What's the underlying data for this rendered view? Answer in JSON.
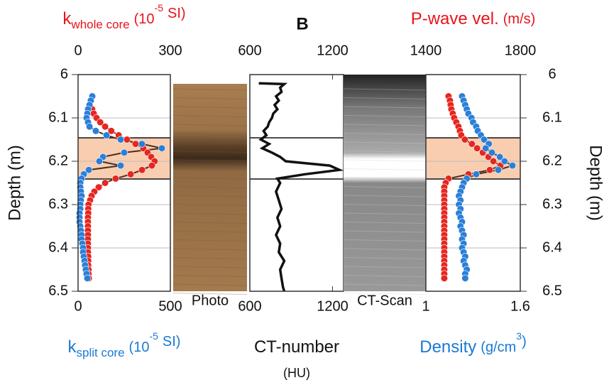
{
  "chart_data": [
    {
      "type": "scatter",
      "ylim": [
        6,
        6.5
      ],
      "yticks": [
        6,
        6.1,
        6.2,
        6.3,
        6.4,
        6.5
      ],
      "y_side": "left",
      "ylabel": "Depth (m)",
      "grid": true,
      "xlim": [
        0,
        500
      ],
      "xticks": [
        0,
        500
      ],
      "x2lim": [
        0,
        300
      ],
      "x2ticks": [
        0,
        300
      ],
      "xlabel": {
        "color": "#1a7ad4",
        "parts": [
          {
            "text": "k"
          },
          {
            "text": "split core",
            "role": "sub"
          },
          {
            "text": "(10",
            "role": "unit"
          },
          {
            "text": "-5",
            "role": "sup"
          },
          {
            "text": "SI)",
            "role": "unit"
          }
        ]
      },
      "x2label": {
        "color": "#e8141c",
        "parts": [
          {
            "text": "k"
          },
          {
            "text": "whole core",
            "role": "sub"
          },
          {
            "text": "(10",
            "role": "unit"
          },
          {
            "text": "-5",
            "role": "sup"
          },
          {
            "text": "SI)",
            "role": "unit"
          }
        ]
      },
      "highlight": [
        6.146,
        6.241
      ],
      "series": [
        {
          "color": "#e6261f",
          "axis": "x2",
          "depth": [
            6.08,
            6.09,
            6.1,
            6.11,
            6.12,
            6.13,
            6.14,
            6.15,
            6.16,
            6.17,
            6.18,
            6.19,
            6.2,
            6.21,
            6.22,
            6.23,
            6.24,
            6.25,
            6.26,
            6.27,
            6.28,
            6.29,
            6.3,
            6.31,
            6.32,
            6.33,
            6.34,
            6.35,
            6.36,
            6.37,
            6.38,
            6.39,
            6.4,
            6.41,
            6.42,
            6.43,
            6.44,
            6.45,
            6.46,
            6.47
          ],
          "values": [
            46,
            51,
            60,
            72,
            88,
            108,
            132,
            159,
            187,
            212,
            226,
            238,
            249,
            240,
            208,
            171,
            122,
            88,
            67,
            53,
            44,
            39,
            34,
            33,
            33,
            32,
            32,
            32,
            32,
            32,
            32,
            32,
            32,
            32,
            33,
            33,
            33,
            34,
            34,
            35
          ]
        },
        {
          "color": "#2a7fd8",
          "depth": [
            6.05,
            6.06,
            6.07,
            6.08,
            6.09,
            6.1,
            6.11,
            6.12,
            6.13,
            6.14,
            6.15,
            6.16,
            6.17,
            6.18,
            6.19,
            6.2,
            6.21,
            6.22,
            6.23,
            6.24,
            6.25,
            6.26,
            6.27,
            6.28,
            6.29,
            6.3,
            6.31,
            6.32,
            6.33,
            6.34,
            6.35,
            6.36,
            6.37,
            6.38,
            6.39,
            6.4,
            6.41,
            6.42,
            6.43,
            6.44,
            6.45,
            6.46,
            6.47
          ],
          "values": [
            77,
            69,
            62,
            54,
            50,
            46,
            54,
            62,
            96,
            154,
            231,
            346,
            454,
            250,
            135,
            115,
            231,
            58,
            31,
            19,
            12,
            12,
            15,
            19,
            15,
            12,
            12,
            8,
            8,
            8,
            12,
            15,
            19,
            19,
            23,
            27,
            27,
            31,
            35,
            38,
            42,
            46,
            50
          ]
        }
      ]
    },
    {
      "type": "image",
      "label": "Photo"
    },
    {
      "type": "line",
      "title": "B",
      "ylim": [
        6,
        6.5
      ],
      "xlim": [
        600,
        1280
      ],
      "xticks": [
        600,
        1200
      ],
      "x2lim": [
        600,
        1280
      ],
      "x2ticks": [
        600,
        1200
      ],
      "xlabel": {
        "color": "#111111",
        "parts": [
          {
            "text": "CT-number"
          },
          {
            "text": "(HU)",
            "role": "newline"
          }
        ]
      },
      "highlight": [
        6.146,
        6.241
      ],
      "series": [
        {
          "color": "#111111",
          "depth": [
            6.02,
            6.022,
            6.03,
            6.04,
            6.05,
            6.06,
            6.07,
            6.08,
            6.09,
            6.1,
            6.11,
            6.12,
            6.13,
            6.14,
            6.15,
            6.16,
            6.17,
            6.18,
            6.19,
            6.2,
            6.21,
            6.22,
            6.23,
            6.24,
            6.25,
            6.27,
            6.29,
            6.31,
            6.33,
            6.35,
            6.37,
            6.39,
            6.41,
            6.43,
            6.45,
            6.47,
            6.49,
            6.5
          ],
          "values": [
            665,
            850,
            820,
            830,
            790,
            810,
            780,
            800,
            770,
            760,
            740,
            730,
            700,
            720,
            680,
            740,
            690,
            760,
            820,
            860,
            1180,
            1250,
            1000,
            800,
            820,
            790,
            810,
            830,
            800,
            820,
            790,
            820,
            810,
            850,
            820,
            830,
            840,
            850
          ]
        }
      ]
    },
    {
      "type": "image",
      "label": "CT-Scan"
    },
    {
      "type": "scatter",
      "ylim": [
        6,
        6.5
      ],
      "yticks": [
        6,
        6.1,
        6.2,
        6.3,
        6.4,
        6.5
      ],
      "y_side": "right",
      "ylabel": "Depth (m)",
      "grid": true,
      "xlim": [
        1,
        1.6
      ],
      "xticks": [
        1,
        1.6
      ],
      "x2lim": [
        1400,
        1800
      ],
      "x2ticks": [
        1400,
        1800
      ],
      "xlabel": {
        "color": "#1a7ad4",
        "parts": [
          {
            "text": "Density"
          },
          {
            "text": "(g/cm",
            "role": "unit"
          },
          {
            "text": "3",
            "role": "sup"
          },
          {
            "text": ")",
            "role": "unitcont"
          }
        ]
      },
      "x2label": {
        "color": "#e8141c",
        "parts": [
          {
            "text": "P-wave vel."
          },
          {
            "text": "(m/s)",
            "role": "unit"
          }
        ]
      },
      "highlight": [
        6.146,
        6.241
      ],
      "series": [
        {
          "color": "#e6261f",
          "axis": "x2",
          "depth": [
            6.05,
            6.06,
            6.07,
            6.08,
            6.09,
            6.1,
            6.11,
            6.12,
            6.13,
            6.14,
            6.15,
            6.16,
            6.17,
            6.18,
            6.19,
            6.2,
            6.21,
            6.22,
            6.23,
            6.24,
            6.25,
            6.26,
            6.27,
            6.28,
            6.29,
            6.3,
            6.31,
            6.32,
            6.33,
            6.34,
            6.35,
            6.36,
            6.37,
            6.38,
            6.39,
            6.4,
            6.41,
            6.42,
            6.43,
            6.44,
            6.45,
            6.46,
            6.47
          ],
          "values": [
            1496,
            1502,
            1505,
            1508,
            1514,
            1520,
            1529,
            1538,
            1544,
            1550,
            1565,
            1595,
            1617,
            1641,
            1665,
            1686,
            1716,
            1671,
            1580,
            1496,
            1484,
            1478,
            1478,
            1478,
            1478,
            1478,
            1478,
            1478,
            1478,
            1478,
            1478,
            1478,
            1478,
            1478,
            1478,
            1478,
            1478,
            1478,
            1478,
            1478,
            1478,
            1478,
            1478
          ]
        },
        {
          "color": "#2a7fd8",
          "depth": [
            6.05,
            6.06,
            6.07,
            6.08,
            6.09,
            6.1,
            6.11,
            6.12,
            6.13,
            6.14,
            6.15,
            6.16,
            6.17,
            6.18,
            6.19,
            6.2,
            6.21,
            6.22,
            6.23,
            6.24,
            6.25,
            6.26,
            6.27,
            6.28,
            6.29,
            6.3,
            6.31,
            6.32,
            6.33,
            6.34,
            6.35,
            6.36,
            6.37,
            6.38,
            6.39,
            6.4,
            6.41,
            6.42,
            6.43,
            6.44,
            6.45,
            6.46,
            6.47
          ],
          "values": [
            1.23,
            1.24,
            1.25,
            1.26,
            1.27,
            1.29,
            1.3,
            1.32,
            1.33,
            1.35,
            1.37,
            1.4,
            1.38,
            1.42,
            1.47,
            1.5,
            1.55,
            1.46,
            1.32,
            1.26,
            1.24,
            1.23,
            1.22,
            1.21,
            1.22,
            1.21,
            1.22,
            1.21,
            1.22,
            1.23,
            1.22,
            1.23,
            1.24,
            1.23,
            1.24,
            1.23,
            1.24,
            1.25,
            1.24,
            1.25,
            1.26,
            1.25,
            1.25
          ]
        }
      ]
    }
  ]
}
